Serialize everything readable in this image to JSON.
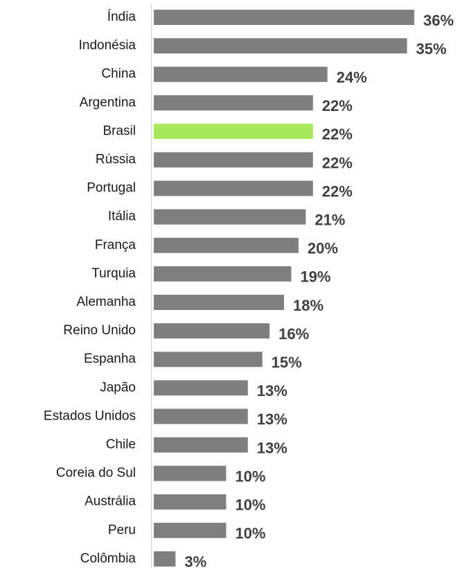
{
  "chart_data": {
    "type": "hbar",
    "categories": [
      "Índia",
      "Indonésia",
      "China",
      "Argentina",
      "Brasil",
      "Rússia",
      "Portugal",
      "Itália",
      "França",
      "Turquia",
      "Alemanha",
      "Reino Unido",
      "Espanha",
      "Japão",
      "Estados Unidos",
      "Chile",
      "Coreia do Sul",
      "Austrália",
      "Peru",
      "Colômbia"
    ],
    "values": [
      36,
      35,
      24,
      22,
      22,
      22,
      22,
      21,
      20,
      19,
      18,
      16,
      15,
      13,
      13,
      13,
      10,
      10,
      10,
      3
    ],
    "value_labels": [
      "36%",
      "35%",
      "24%",
      "22%",
      "22%",
      "22%",
      "22%",
      "21%",
      "20%",
      "19%",
      "18%",
      "16%",
      "15%",
      "13%",
      "13%",
      "13%",
      "10%",
      "10%",
      "10%",
      "3%"
    ],
    "colors": [
      "#7f7f7f",
      "#7f7f7f",
      "#7f7f7f",
      "#7f7f7f",
      "#a9e85a",
      "#7f7f7f",
      "#7f7f7f",
      "#7f7f7f",
      "#7f7f7f",
      "#7f7f7f",
      "#7f7f7f",
      "#7f7f7f",
      "#7f7f7f",
      "#7f7f7f",
      "#7f7f7f",
      "#7f7f7f",
      "#7f7f7f",
      "#7f7f7f",
      "#7f7f7f",
      "#7f7f7f"
    ]
  }
}
